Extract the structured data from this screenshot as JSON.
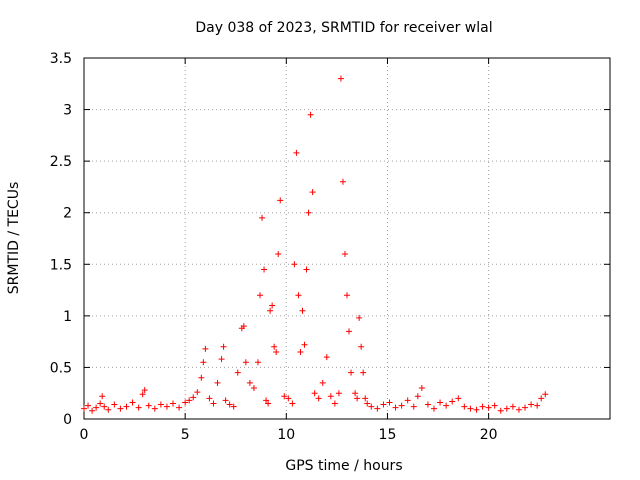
{
  "chart_data": {
    "type": "scatter",
    "title": "Day 038 of 2023, SRMTID for receiver wlal",
    "xlabel": "GPS time / hours",
    "ylabel": "SRMTID / TECUs",
    "xlim": [
      0,
      26
    ],
    "ylim": [
      0,
      3.5
    ],
    "xticks": [
      0,
      5,
      10,
      15,
      20
    ],
    "yticks": [
      0,
      0.5,
      1,
      1.5,
      2,
      2.5,
      3,
      3.5
    ],
    "xtick_labels": [
      "0",
      "5",
      "10",
      "15",
      "20"
    ],
    "ytick_labels": [
      "0",
      "0.5",
      "1",
      "1.5",
      "2",
      "2.5",
      "3",
      "3.5"
    ],
    "grid": true,
    "marker": "+",
    "marker_color": "#ff0000",
    "series": [
      {
        "name": "SRMTID",
        "x": [
          0.0,
          0.2,
          0.4,
          0.6,
          0.8,
          0.9,
          1.0,
          1.2,
          1.5,
          1.8,
          2.1,
          2.4,
          2.7,
          2.9,
          3.0,
          3.2,
          3.5,
          3.8,
          4.1,
          4.4,
          4.7,
          5.0,
          5.2,
          5.4,
          5.6,
          5.8,
          5.9,
          6.0,
          6.2,
          6.4,
          6.6,
          6.8,
          6.9,
          7.0,
          7.2,
          7.4,
          7.6,
          7.8,
          7.9,
          8.0,
          8.2,
          8.4,
          8.6,
          8.7,
          8.8,
          8.9,
          9.0,
          9.1,
          9.2,
          9.3,
          9.4,
          9.5,
          9.6,
          9.7,
          9.9,
          10.1,
          10.3,
          10.4,
          10.5,
          10.6,
          10.7,
          10.8,
          10.9,
          11.0,
          11.1,
          11.2,
          11.3,
          11.4,
          11.6,
          11.8,
          12.0,
          12.2,
          12.4,
          12.6,
          12.7,
          12.8,
          12.9,
          13.0,
          13.1,
          13.2,
          13.4,
          13.5,
          13.6,
          13.7,
          13.8,
          13.9,
          14.0,
          14.2,
          14.5,
          14.8,
          15.1,
          15.4,
          15.7,
          16.0,
          16.3,
          16.5,
          16.7,
          17.0,
          17.3,
          17.6,
          17.9,
          18.2,
          18.5,
          18.8,
          19.1,
          19.4,
          19.7,
          20.0,
          20.3,
          20.6,
          20.9,
          21.2,
          21.5,
          21.8,
          22.1,
          22.4,
          22.6,
          22.8
        ],
        "y": [
          0.1,
          0.13,
          0.08,
          0.11,
          0.15,
          0.22,
          0.12,
          0.09,
          0.14,
          0.1,
          0.12,
          0.16,
          0.11,
          0.24,
          0.28,
          0.13,
          0.1,
          0.14,
          0.12,
          0.15,
          0.11,
          0.16,
          0.18,
          0.21,
          0.26,
          0.4,
          0.55,
          0.68,
          0.2,
          0.15,
          0.35,
          0.58,
          0.7,
          0.18,
          0.14,
          0.12,
          0.45,
          0.88,
          0.9,
          0.55,
          0.35,
          0.3,
          0.55,
          1.2,
          1.95,
          1.45,
          0.18,
          0.15,
          1.05,
          1.1,
          0.7,
          0.65,
          1.6,
          2.12,
          0.22,
          0.2,
          0.15,
          1.5,
          2.58,
          1.2,
          0.65,
          1.05,
          0.72,
          1.45,
          2.0,
          2.95,
          2.2,
          0.25,
          0.2,
          0.35,
          0.6,
          0.22,
          0.15,
          0.25,
          3.3,
          2.3,
          1.6,
          1.2,
          0.85,
          0.45,
          0.25,
          0.2,
          0.98,
          0.7,
          0.45,
          0.2,
          0.15,
          0.12,
          0.1,
          0.14,
          0.16,
          0.11,
          0.13,
          0.18,
          0.12,
          0.22,
          0.3,
          0.14,
          0.1,
          0.16,
          0.13,
          0.17,
          0.2,
          0.12,
          0.1,
          0.09,
          0.12,
          0.11,
          0.13,
          0.08,
          0.1,
          0.12,
          0.09,
          0.11,
          0.14,
          0.13,
          0.2,
          0.24
        ]
      }
    ]
  }
}
